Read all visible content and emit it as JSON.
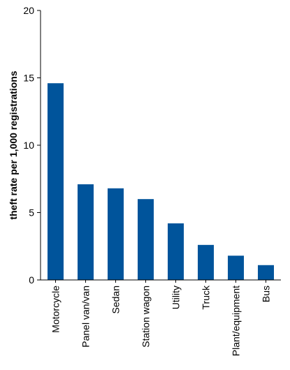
{
  "chart_data": {
    "type": "bar",
    "title": "",
    "xlabel": "",
    "ylabel": "theft rate per 1,000 registrations",
    "categories": [
      "Motorcycle",
      "Panel van/van",
      "Sedan",
      "Station wagon",
      "Utility",
      "Truck",
      "Plant/equipment",
      "Bus"
    ],
    "values": [
      14.6,
      7.1,
      6.8,
      6.0,
      4.2,
      2.6,
      1.8,
      1.1
    ],
    "ylim": [
      0,
      20
    ],
    "yticks": [
      "0",
      "5",
      "10",
      "15",
      "20"
    ],
    "grid": false,
    "legend": "none",
    "bar_color": "#00549b"
  }
}
